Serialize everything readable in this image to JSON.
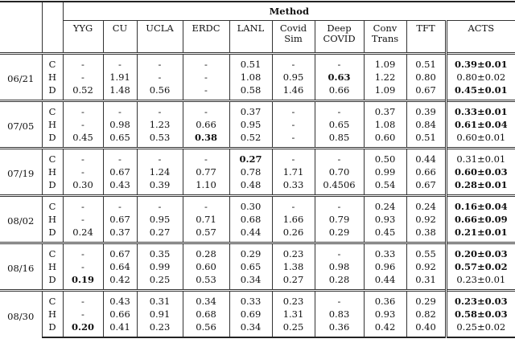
{
  "header": {
    "group_label": "Method",
    "methods": [
      "YYG",
      "CU",
      "UCLA",
      "ERDC",
      "LANL",
      "Covid\nSim",
      "Deep\nCOVID",
      "Conv\nTrans",
      "TFT",
      "ACTS"
    ]
  },
  "groups": [
    {
      "date": "06/21",
      "rows": [
        {
          "type": "C",
          "values": [
            "-",
            "-",
            "-",
            "-",
            "0.51",
            "-",
            "-",
            "1.09",
            "0.51",
            "0.39±0.01"
          ],
          "bold": [
            9
          ]
        },
        {
          "type": "H",
          "values": [
            "-",
            "1.91",
            "-",
            "-",
            "1.08",
            "0.95",
            "0.63",
            "1.22",
            "0.80",
            "0.80±0.02"
          ],
          "bold": [
            6
          ]
        },
        {
          "type": "D",
          "values": [
            "0.52",
            "1.48",
            "0.56",
            "-",
            "0.58",
            "1.46",
            "0.66",
            "1.09",
            "0.67",
            "0.45±0.01"
          ],
          "bold": [
            9
          ]
        }
      ]
    },
    {
      "date": "07/05",
      "rows": [
        {
          "type": "C",
          "values": [
            "-",
            "-",
            "-",
            "-",
            "0.37",
            "-",
            "-",
            "0.37",
            "0.39",
            "0.33±0.01"
          ],
          "bold": [
            9
          ]
        },
        {
          "type": "H",
          "values": [
            "-",
            "0.98",
            "1.23",
            "0.66",
            "0.95",
            "-",
            "0.65",
            "1.08",
            "0.84",
            "0.61±0.04"
          ],
          "bold": [
            9
          ]
        },
        {
          "type": "D",
          "values": [
            "0.45",
            "0.65",
            "0.53",
            "0.38",
            "0.52",
            "-",
            "0.85",
            "0.60",
            "0.51",
            "0.60±0.01"
          ],
          "bold": [
            3
          ]
        }
      ]
    },
    {
      "date": "07/19",
      "rows": [
        {
          "type": "C",
          "values": [
            "-",
            "-",
            "-",
            "-",
            "0.27",
            "-",
            "-",
            "0.50",
            "0.44",
            "0.31±0.01"
          ],
          "bold": [
            4
          ]
        },
        {
          "type": "H",
          "values": [
            "-",
            "0.67",
            "1.24",
            "0.77",
            "0.78",
            "1.71",
            "0.70",
            "0.99",
            "0.66",
            "0.60±0.03"
          ],
          "bold": [
            9
          ]
        },
        {
          "type": "D",
          "values": [
            "0.30",
            "0.43",
            "0.39",
            "1.10",
            "0.48",
            "0.33",
            "0.4506",
            "0.54",
            "0.67",
            "0.28±0.01"
          ],
          "bold": [
            9
          ]
        }
      ]
    },
    {
      "date": "08/02",
      "rows": [
        {
          "type": "C",
          "values": [
            "-",
            "-",
            "-",
            "-",
            "0.30",
            "-",
            "-",
            "0.24",
            "0.24",
            "0.16±0.04"
          ],
          "bold": [
            9
          ]
        },
        {
          "type": "H",
          "values": [
            "-",
            "0.67",
            "0.95",
            "0.71",
            "0.68",
            "1.66",
            "0.79",
            "0.93",
            "0.92",
            "0.66±0.09"
          ],
          "bold": [
            9
          ]
        },
        {
          "type": "D",
          "values": [
            "0.24",
            "0.37",
            "0.27",
            "0.57",
            "0.44",
            "0.26",
            "0.29",
            "0.45",
            "0.38",
            "0.21±0.01"
          ],
          "bold": [
            9
          ]
        }
      ]
    },
    {
      "date": "08/16",
      "rows": [
        {
          "type": "C",
          "values": [
            "-",
            "0.67",
            "0.35",
            "0.28",
            "0.29",
            "0.23",
            "-",
            "0.33",
            "0.55",
            "0.20±0.03"
          ],
          "bold": [
            9
          ]
        },
        {
          "type": "H",
          "values": [
            "-",
            "0.64",
            "0.99",
            "0.60",
            "0.65",
            "1.38",
            "0.98",
            "0.96",
            "0.92",
            "0.57±0.02"
          ],
          "bold": [
            9
          ]
        },
        {
          "type": "D",
          "values": [
            "0.19",
            "0.42",
            "0.25",
            "0.53",
            "0.34",
            "0.27",
            "0.28",
            "0.44",
            "0.31",
            "0.23±0.01"
          ],
          "bold": [
            0
          ]
        }
      ]
    },
    {
      "date": "08/30",
      "rows": [
        {
          "type": "C",
          "values": [
            "-",
            "0.43",
            "0.31",
            "0.34",
            "0.33",
            "0.23",
            "-",
            "0.36",
            "0.29",
            "0.23±0.03"
          ],
          "bold": [
            9
          ]
        },
        {
          "type": "H",
          "values": [
            "-",
            "0.66",
            "0.91",
            "0.68",
            "0.69",
            "1.31",
            "0.83",
            "0.93",
            "0.82",
            "0.58±0.03"
          ],
          "bold": [
            9
          ]
        },
        {
          "type": "D",
          "values": [
            "0.20",
            "0.41",
            "0.23",
            "0.56",
            "0.34",
            "0.25",
            "0.36",
            "0.42",
            "0.40",
            "0.25±0.02"
          ],
          "bold": [
            0
          ]
        }
      ]
    }
  ]
}
